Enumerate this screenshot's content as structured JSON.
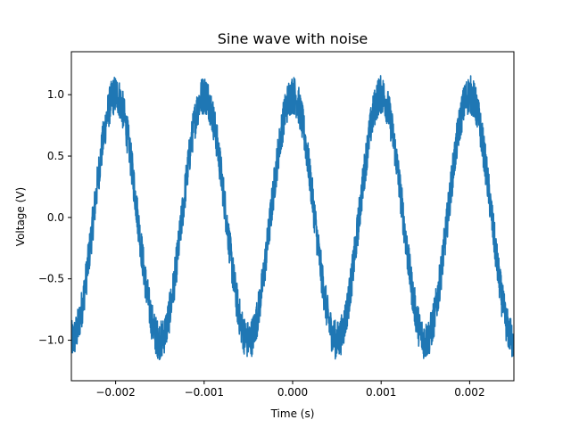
{
  "chart_data": {
    "type": "line",
    "title": "Sine wave with noise",
    "xlabel": "Time (s)",
    "ylabel": "Voltage (V)",
    "xlim": [
      -0.0025,
      0.0025
    ],
    "ylim": [
      -1.33,
      1.35
    ],
    "x_ticks": [
      -0.002,
      -0.001,
      0.0,
      0.001,
      0.002
    ],
    "x_tick_labels": [
      "−0.002",
      "−0.001",
      "0.000",
      "0.001",
      "0.002"
    ],
    "y_ticks": [
      -1.0,
      -0.5,
      0.0,
      0.5,
      1.0
    ],
    "y_tick_labels": [
      "−1.0",
      "−0.5",
      "0.0",
      "0.5",
      "1.0"
    ],
    "grid": false,
    "series": [
      {
        "color": "#1f77b4",
        "frequency_hz": 1000,
        "amplitude": 1.0,
        "noise_amplitude": 0.1,
        "x_start": -0.0025,
        "x_end": 0.0025
      }
    ]
  }
}
